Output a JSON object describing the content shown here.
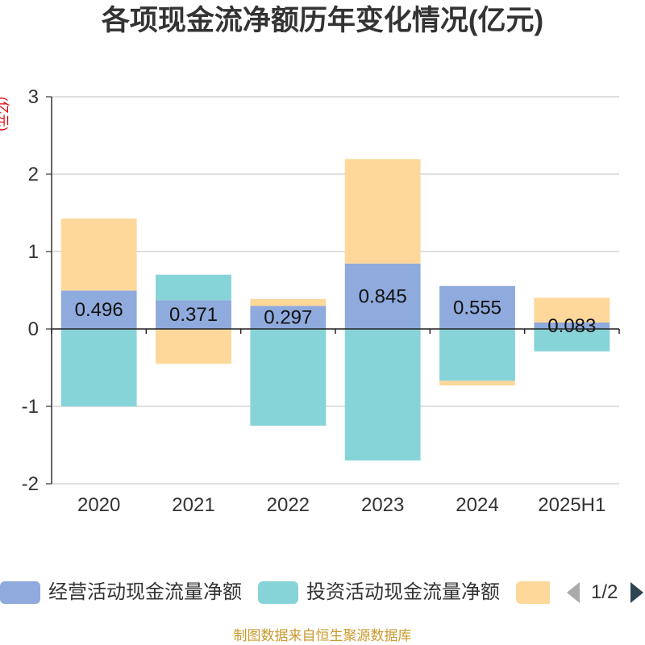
{
  "chart_data": {
    "type": "bar",
    "stacked": true,
    "title": "各项现金流净额历年变化情况(亿元)",
    "ylabel": "(亿元)",
    "xlabel": "",
    "categories": [
      "2020",
      "2021",
      "2022",
      "2023",
      "2024",
      "2025H1"
    ],
    "ylim": [
      -2,
      3
    ],
    "yticks": [
      -2,
      -1,
      0,
      1,
      2,
      3
    ],
    "grid": true,
    "legend_position": "bottom",
    "series": [
      {
        "name": "经营活动现金流量净额",
        "color": "#8FAADC",
        "values": [
          0.496,
          0.371,
          0.297,
          0.845,
          0.555,
          0.083
        ],
        "show_labels": true
      },
      {
        "name": "投资活动现金流量净额",
        "color": "#87D4D8",
        "values": [
          -1.0,
          0.33,
          -1.25,
          -1.7,
          -0.67,
          -0.29
        ]
      },
      {
        "color": "#FDD89A",
        "values": [
          0.93,
          -0.45,
          0.09,
          1.35,
          -0.06,
          0.32
        ]
      }
    ]
  },
  "legend": {
    "page_indicator": "1/2",
    "prev_icon": "triangle-left-icon",
    "next_icon": "triangle-right-icon"
  },
  "footer": "制图数据来自恒生聚源数据库"
}
